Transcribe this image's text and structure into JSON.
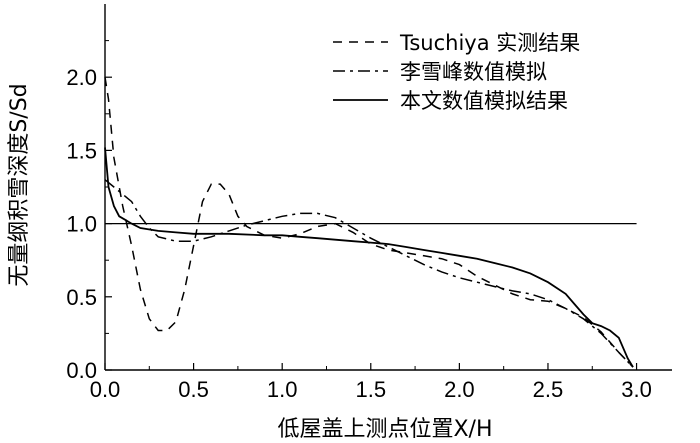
{
  "chart_data": {
    "type": "line",
    "xlabel": "低屋盖上测点位置X/H",
    "ylabel": "无量纲积雪深度S/Sd",
    "xlim": [
      0,
      3.2
    ],
    "ylim": [
      0,
      2.5
    ],
    "x_ticks": [
      "0.0",
      "0.5",
      "1.0",
      "1.5",
      "2.0",
      "2.5",
      "3.0"
    ],
    "y_ticks": [
      "0.0",
      "0.5",
      "1.0",
      "1.5",
      "2.0"
    ],
    "legend_position": "top-right",
    "grid": false,
    "reference_line": {
      "y": 1.0,
      "x_range": [
        0,
        3.0
      ]
    },
    "series": [
      {
        "name": "Tsuchiya 实测结果",
        "style": "dashed",
        "points": [
          [
            0.0,
            2.0
          ],
          [
            0.02,
            1.85
          ],
          [
            0.05,
            1.45
          ],
          [
            0.1,
            1.12
          ],
          [
            0.15,
            0.85
          ],
          [
            0.2,
            0.55
          ],
          [
            0.25,
            0.35
          ],
          [
            0.3,
            0.27
          ],
          [
            0.35,
            0.27
          ],
          [
            0.4,
            0.33
          ],
          [
            0.45,
            0.55
          ],
          [
            0.5,
            0.85
          ],
          [
            0.55,
            1.15
          ],
          [
            0.6,
            1.27
          ],
          [
            0.65,
            1.27
          ],
          [
            0.7,
            1.2
          ],
          [
            0.75,
            1.05
          ],
          [
            0.8,
            0.98
          ],
          [
            0.9,
            0.92
          ],
          [
            1.0,
            0.9
          ],
          [
            1.1,
            0.93
          ],
          [
            1.2,
            0.98
          ],
          [
            1.3,
            1.0
          ],
          [
            1.4,
            0.94
          ],
          [
            1.5,
            0.86
          ],
          [
            1.6,
            0.82
          ],
          [
            1.8,
            0.78
          ],
          [
            1.9,
            0.76
          ],
          [
            2.0,
            0.72
          ],
          [
            2.1,
            0.64
          ],
          [
            2.2,
            0.58
          ],
          [
            2.3,
            0.52
          ],
          [
            2.4,
            0.48
          ],
          [
            2.5,
            0.47
          ],
          [
            2.6,
            0.42
          ],
          [
            2.7,
            0.36
          ],
          [
            2.8,
            0.26
          ],
          [
            2.9,
            0.12
          ],
          [
            2.98,
            0.02
          ]
        ]
      },
      {
        "name": "李雪峰数值模拟",
        "style": "dashdot",
        "points": [
          [
            0.0,
            1.3
          ],
          [
            0.05,
            1.25
          ],
          [
            0.1,
            1.2
          ],
          [
            0.15,
            1.15
          ],
          [
            0.2,
            1.05
          ],
          [
            0.25,
            0.97
          ],
          [
            0.3,
            0.91
          ],
          [
            0.4,
            0.88
          ],
          [
            0.5,
            0.88
          ],
          [
            0.6,
            0.91
          ],
          [
            0.7,
            0.95
          ],
          [
            0.8,
            0.99
          ],
          [
            0.9,
            1.02
          ],
          [
            1.0,
            1.05
          ],
          [
            1.1,
            1.07
          ],
          [
            1.2,
            1.07
          ],
          [
            1.3,
            1.04
          ],
          [
            1.4,
            0.97
          ],
          [
            1.5,
            0.9
          ],
          [
            1.6,
            0.84
          ],
          [
            1.7,
            0.78
          ],
          [
            1.8,
            0.72
          ],
          [
            1.9,
            0.67
          ],
          [
            2.0,
            0.63
          ],
          [
            2.1,
            0.6
          ],
          [
            2.2,
            0.57
          ],
          [
            2.3,
            0.54
          ],
          [
            2.4,
            0.52
          ],
          [
            2.5,
            0.48
          ],
          [
            2.6,
            0.42
          ],
          [
            2.7,
            0.35
          ],
          [
            2.8,
            0.25
          ],
          [
            2.9,
            0.12
          ],
          [
            2.98,
            0.02
          ]
        ]
      },
      {
        "name": "本文数值模拟结果",
        "style": "solid",
        "points": [
          [
            0.0,
            1.52
          ],
          [
            0.02,
            1.25
          ],
          [
            0.05,
            1.12
          ],
          [
            0.08,
            1.05
          ],
          [
            0.15,
            1.0
          ],
          [
            0.2,
            0.97
          ],
          [
            0.3,
            0.95
          ],
          [
            0.4,
            0.94
          ],
          [
            0.5,
            0.93
          ],
          [
            0.7,
            0.93
          ],
          [
            0.9,
            0.92
          ],
          [
            1.0,
            0.92
          ],
          [
            1.1,
            0.91
          ],
          [
            1.2,
            0.9
          ],
          [
            1.3,
            0.89
          ],
          [
            1.4,
            0.88
          ],
          [
            1.5,
            0.87
          ],
          [
            1.6,
            0.86
          ],
          [
            1.7,
            0.84
          ],
          [
            1.8,
            0.82
          ],
          [
            1.9,
            0.8
          ],
          [
            2.0,
            0.78
          ],
          [
            2.1,
            0.76
          ],
          [
            2.2,
            0.73
          ],
          [
            2.3,
            0.7
          ],
          [
            2.4,
            0.66
          ],
          [
            2.5,
            0.6
          ],
          [
            2.6,
            0.52
          ],
          [
            2.65,
            0.45
          ],
          [
            2.7,
            0.38
          ],
          [
            2.75,
            0.32
          ],
          [
            2.8,
            0.3
          ],
          [
            2.85,
            0.27
          ],
          [
            2.9,
            0.22
          ],
          [
            2.95,
            0.08
          ],
          [
            2.98,
            0.02
          ]
        ]
      }
    ]
  }
}
